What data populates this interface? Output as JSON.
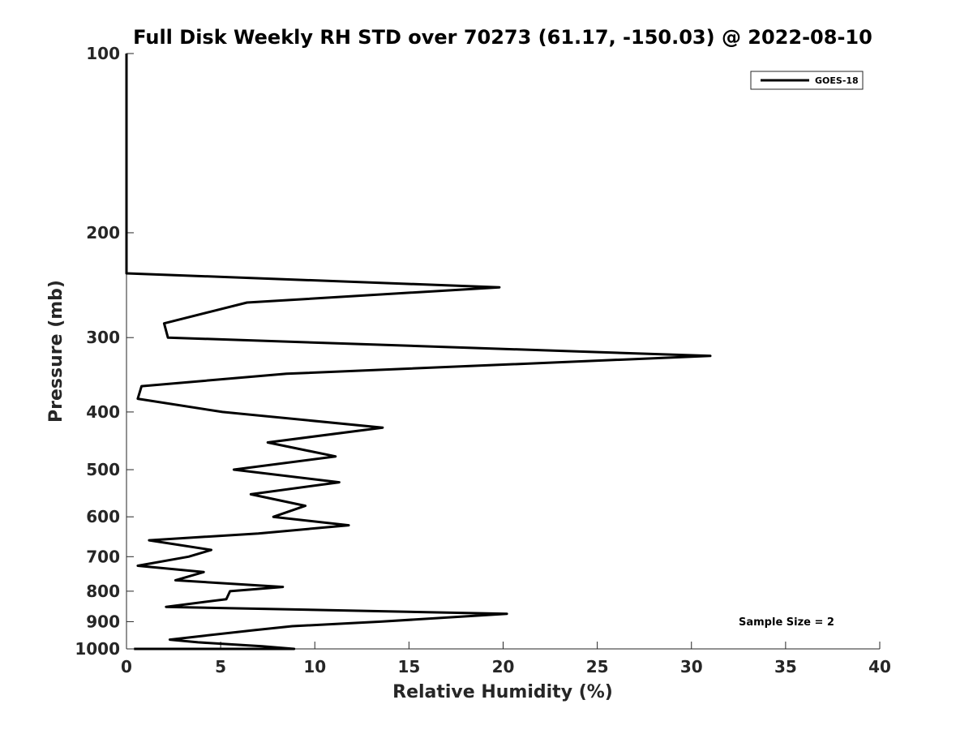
{
  "chart_data": {
    "type": "line",
    "title": "Full Disk Weekly RH STD over 70273 (61.17, -150.03) @ 2022-08-10",
    "xlabel": "Relative Humidity (%)",
    "ylabel": "Pressure (mb)",
    "xlim": [
      0,
      40
    ],
    "ylim": [
      100,
      1000
    ],
    "yscale": "log",
    "y_reversed": true,
    "xticks": [
      0,
      5,
      10,
      15,
      20,
      25,
      30,
      35,
      40
    ],
    "yticks": [
      100,
      200,
      300,
      400,
      500,
      600,
      700,
      800,
      900,
      1000
    ],
    "grid": false,
    "legend_position": "top-right",
    "annotation": "Sample Size = 2",
    "series": [
      {
        "name": "GOES-18",
        "color": "#000000",
        "x": [
          0,
          0,
          0,
          0,
          0,
          0,
          0,
          0,
          0,
          0,
          0,
          0,
          0,
          0,
          19.8,
          6.4,
          2.0,
          2.2,
          31.0,
          8.5,
          0.8,
          0.6,
          5.1,
          13.6,
          7.5,
          11.1,
          5.7,
          11.3,
          6.6,
          9.5,
          7.8,
          11.8,
          7.0,
          1.2,
          4.5,
          3.3,
          0.6,
          4.1,
          2.6,
          8.3,
          5.5,
          5.3,
          2.1,
          20.2,
          13.5,
          8.8,
          6.8,
          4.2,
          2.3,
          3.8,
          7.2,
          8.9,
          5.0,
          0.4
        ],
        "y": [
          100,
          110,
          120,
          130,
          140,
          150,
          160,
          170,
          180,
          190,
          200,
          210,
          220,
          234,
          247,
          262,
          284,
          300,
          322,
          345,
          362,
          380,
          400,
          425,
          450,
          475,
          500,
          525,
          550,
          575,
          600,
          620,
          640,
          657,
          682,
          700,
          725,
          743,
          767,
          787,
          800,
          825,
          850,
          873,
          900,
          916,
          930,
          950,
          965,
          975,
          990,
          1000,
          1005,
          1010
        ]
      }
    ]
  }
}
